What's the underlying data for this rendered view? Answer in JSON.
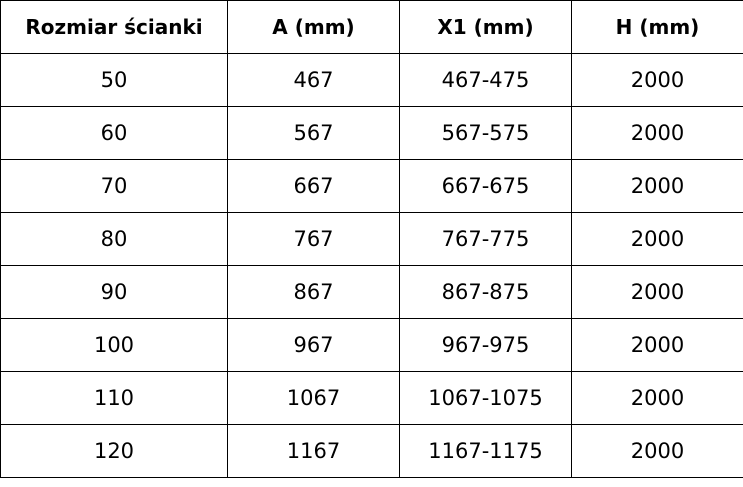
{
  "table": {
    "headers": [
      "Rozmiar ścianki",
      "A (mm)",
      "X1 (mm)",
      "H (mm)"
    ],
    "rows": [
      [
        "50",
        "467",
        "467-475",
        "2000"
      ],
      [
        "60",
        "567",
        "567-575",
        "2000"
      ],
      [
        "70",
        "667",
        "667-675",
        "2000"
      ],
      [
        "80",
        "767",
        "767-775",
        "2000"
      ],
      [
        "90",
        "867",
        "867-875",
        "2000"
      ],
      [
        "100",
        "967",
        "967-975",
        "2000"
      ],
      [
        "110",
        "1067",
        "1067-1075",
        "2000"
      ],
      [
        "120",
        "1167",
        "1167-1175",
        "2000"
      ]
    ]
  }
}
